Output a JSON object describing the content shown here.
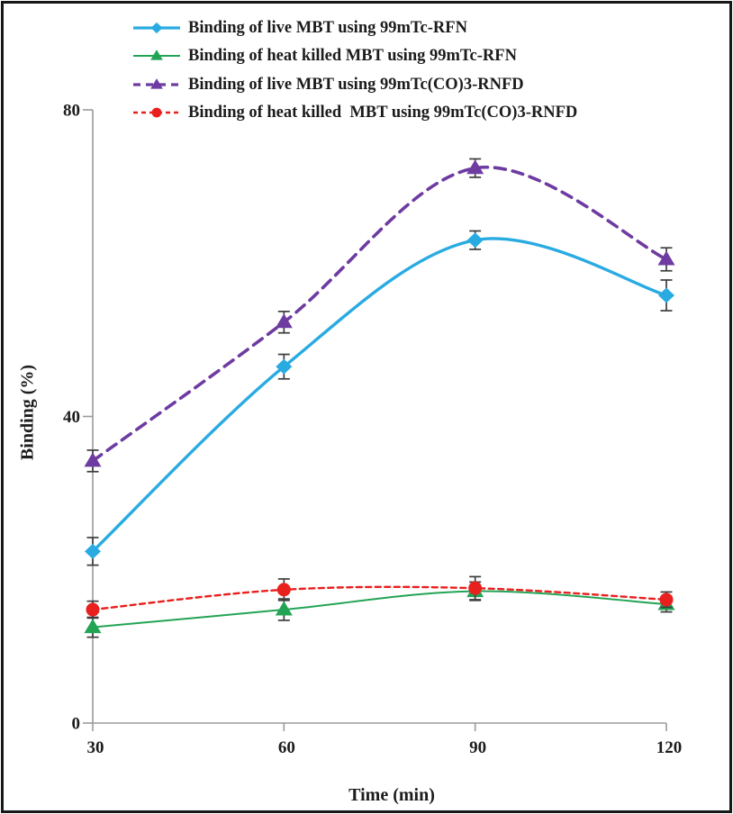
{
  "figure": {
    "background": "#ffffff",
    "border_color": "#181818"
  },
  "chart_data": {
    "type": "line",
    "title": "",
    "xlabel": "Time (min)",
    "ylabel": "Binding (%)",
    "x": [
      30,
      60,
      90,
      120
    ],
    "x_tick_labels": [
      "30",
      "60",
      "90",
      "120"
    ],
    "y_tick_values": [
      0,
      40,
      80
    ],
    "y_tick_labels": [
      "0",
      "40",
      "80"
    ],
    "xlim": [
      30,
      120
    ],
    "ylim": [
      0,
      80
    ],
    "grid": false,
    "legend_position": "top-left",
    "axis_color": "#9b9b9b",
    "text_color": "#1c1c1c",
    "error_bar_color": "#3d3d3d",
    "series": [
      {
        "name": "Binding of live MBT using 99mTc-RFN",
        "color": "#29ABE2",
        "marker": "diamond",
        "line_style": "solid",
        "line_width": 3.4,
        "values": [
          22.4,
          46.5,
          63.0,
          55.8
        ],
        "errors": [
          1.8,
          1.6,
          1.2,
          2.0
        ]
      },
      {
        "name": "Binding of heat killed MBT using 99mTc-RFN",
        "color": "#23A455",
        "marker": "triangle",
        "line_style": "solid",
        "line_width": 2.0,
        "values": [
          12.5,
          14.8,
          17.2,
          15.5
        ],
        "errors": [
          1.3,
          1.4,
          1.2,
          1.0
        ]
      },
      {
        "name": "Binding of live MBT using 99mTc(CO)3-RNFD",
        "color": "#6E3BA1",
        "marker": "triangle",
        "line_style": "dashed",
        "line_width": 3.6,
        "values": [
          34.2,
          52.3,
          72.4,
          60.5
        ],
        "errors": [
          1.4,
          1.4,
          1.2,
          1.5
        ]
      },
      {
        "name": "Binding of heat killed  MBT using 99mTc(CO)3-RNFD",
        "color": "#E8201E",
        "marker": "circle",
        "line_style": "dashed",
        "line_width": 2.4,
        "values": [
          14.8,
          17.4,
          17.6,
          16.1
        ],
        "errors": [
          1.1,
          1.4,
          1.5,
          1.0
        ]
      }
    ],
    "draw_order": [
      1,
      3,
      0,
      2
    ]
  }
}
